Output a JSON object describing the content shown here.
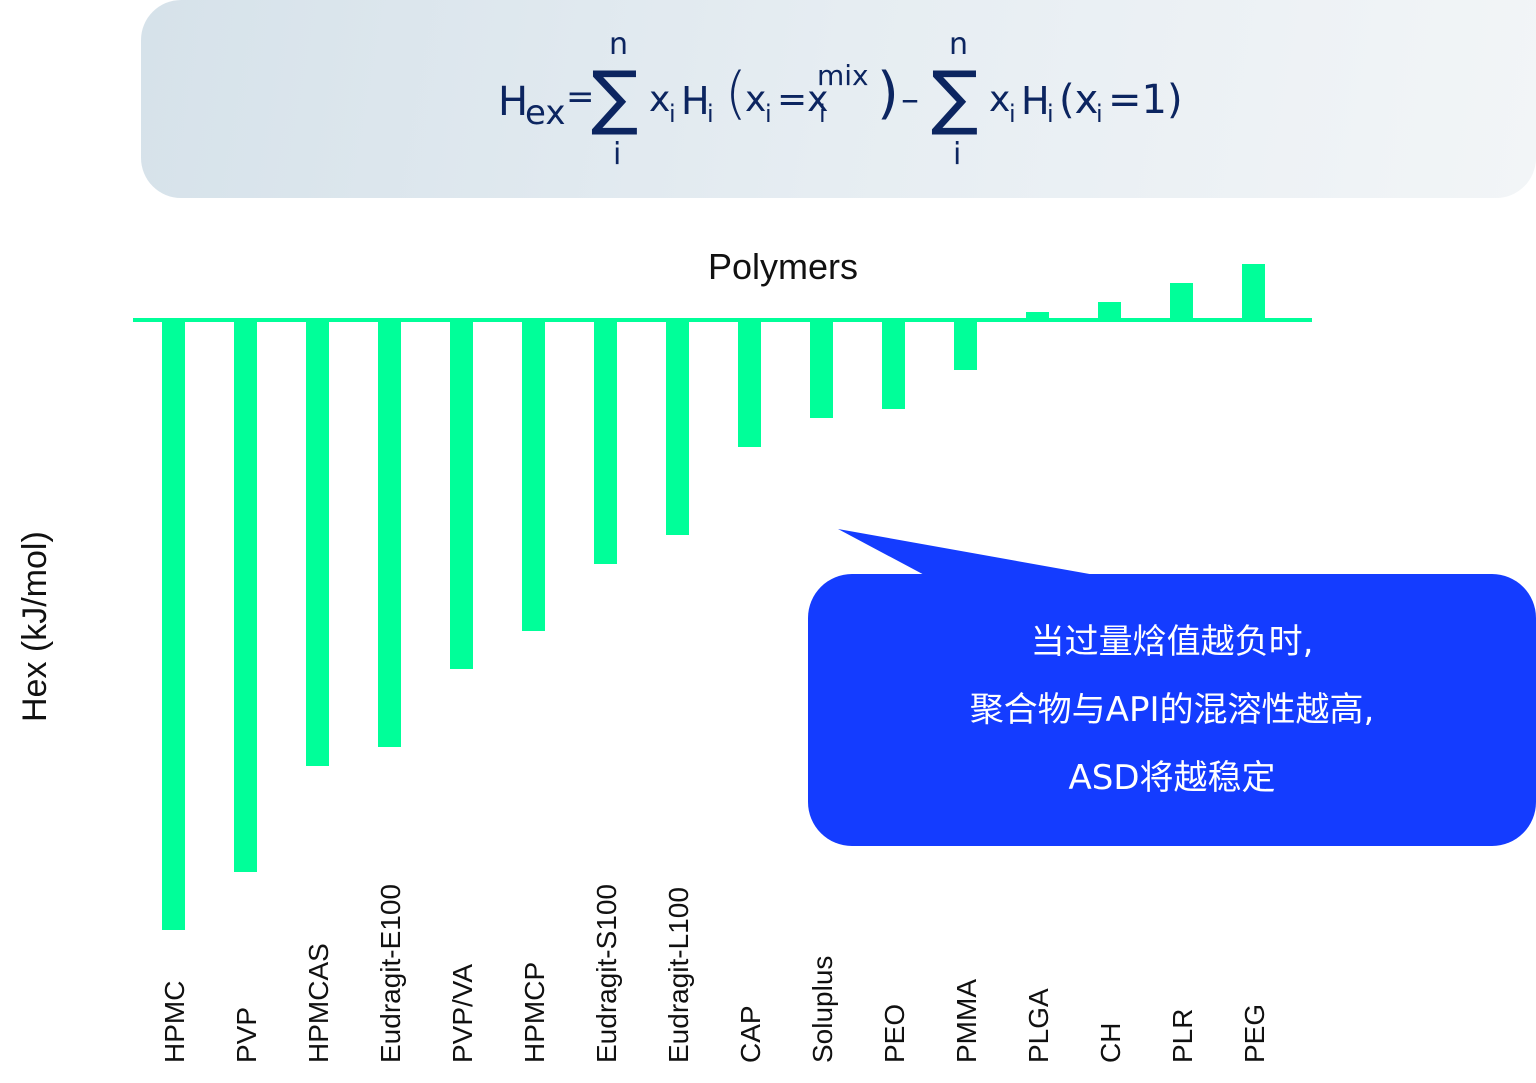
{
  "formula": {
    "lhs": "H",
    "lhs_sub": "ex",
    "eq": "=",
    "sum_top": "n",
    "sum_bottom": "i",
    "sigma": "∑",
    "term1": "x",
    "term1_sub": "i",
    "term2": "H",
    "term2_sub": "i",
    "paren1_open": "(",
    "paren1_x": "x",
    "paren1_x_sub": "i",
    "paren1_eq": "=x",
    "paren1_sup": "mix",
    "paren1_sub2": "i",
    "paren1_close": ")",
    "minus": "–",
    "paren2_text": "(x",
    "paren2_sub": "i",
    "paren2_rest": "=1)"
  },
  "colors": {
    "bar": "#00ff99",
    "bubble": "#143cff",
    "formula_text": "#0c2560"
  },
  "chart_data": {
    "type": "bar",
    "title": "Polymers",
    "xlabel": "Polymers",
    "ylabel": "Hex (kJ/mol)",
    "grid": false,
    "legend": null,
    "note": "No numeric y-axis ticks shown; values are relative magnitudes estimated from bar lengths (arbitrary units, negative = below zero line).",
    "categories": [
      "HPMC",
      "PVP",
      "HPMCAS",
      "Eudragit-E100",
      "PVP/VA",
      "HPMCP",
      "Eudragit-S100",
      "Eudragit-L100",
      "CAP",
      "Soluplus",
      "PEO",
      "PMMA",
      "PLGA",
      "CH",
      "PLR",
      "PEG"
    ],
    "values": [
      -610,
      -552,
      -446,
      -427,
      -349,
      -311,
      -244,
      -215,
      -127,
      -98,
      -89,
      -50,
      8,
      18,
      37,
      56
    ],
    "annotation": "当过量焓值越负时，聚合物与API的混溶性越高，ASD将越稳定"
  },
  "bubble": {
    "lines": [
      "当过量焓值越负时,",
      "聚合物与API的混溶性越高,",
      "ASD将越稳定"
    ]
  }
}
